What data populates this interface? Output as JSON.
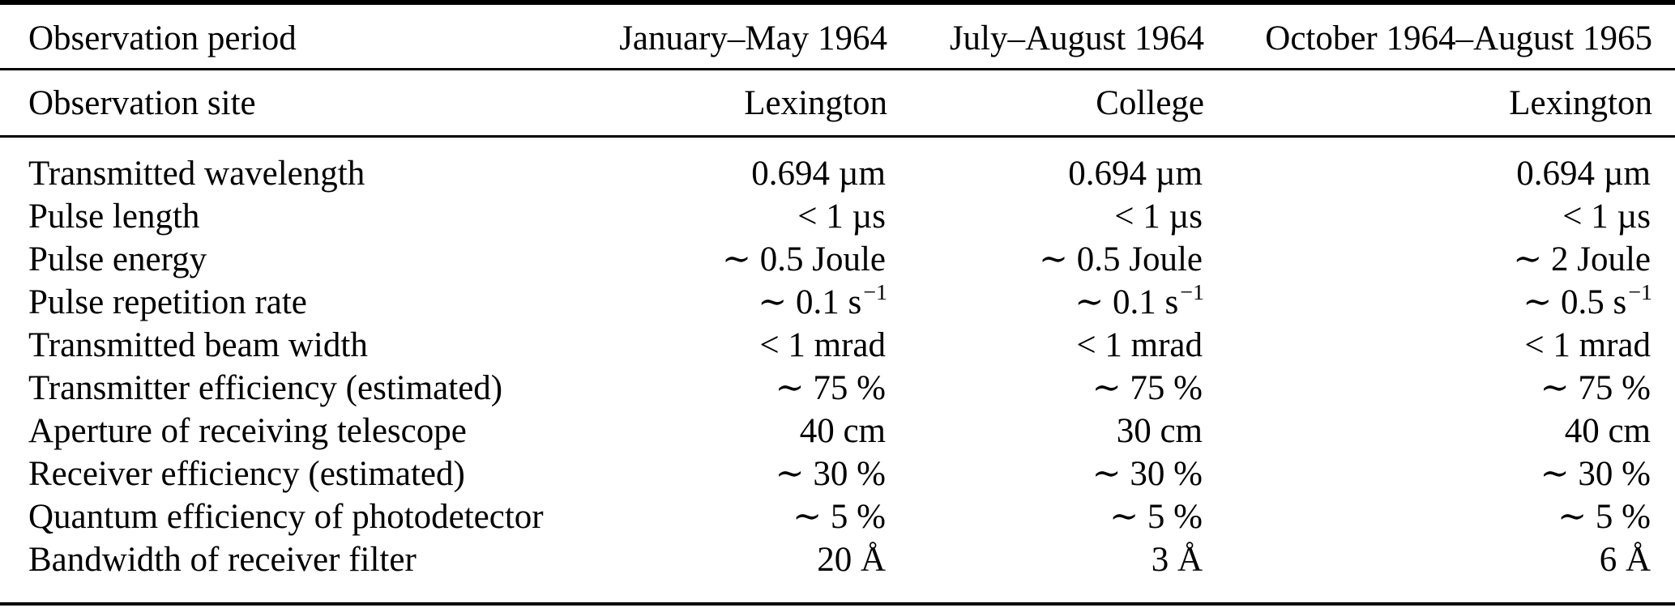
{
  "table": {
    "header_row": {
      "label": "Observation period",
      "values": [
        {
          "text": "January–May 1964"
        },
        {
          "text": "July–August 1964"
        },
        {
          "text": "October 1964–August 1965"
        }
      ]
    },
    "site_row": {
      "label": "Observation site",
      "values": [
        {
          "text": "Lexington"
        },
        {
          "text": "College"
        },
        {
          "text": "Lexington"
        }
      ]
    },
    "rows": [
      {
        "label": "Transmitted wavelength",
        "values": [
          {
            "text": "0.694 µm"
          },
          {
            "text": "0.694 µm"
          },
          {
            "text": "0.694 µm"
          }
        ]
      },
      {
        "label": "Pulse length",
        "values": [
          {
            "text": "< 1 µs"
          },
          {
            "text": "< 1 µs"
          },
          {
            "text": "< 1 µs"
          }
        ]
      },
      {
        "label": "Pulse energy",
        "values": [
          {
            "text": "∼ 0.5 Joule"
          },
          {
            "text": "∼ 0.5 Joule"
          },
          {
            "text": "∼ 2 Joule"
          }
        ]
      },
      {
        "label": "Pulse repetition rate",
        "values": [
          {
            "text": "∼ 0.1 s",
            "sup": "−1"
          },
          {
            "text": "∼ 0.1 s",
            "sup": "−1"
          },
          {
            "text": "∼ 0.5 s",
            "sup": "−1"
          }
        ]
      },
      {
        "label": "Transmitted beam width",
        "values": [
          {
            "text": "< 1 mrad"
          },
          {
            "text": "< 1 mrad"
          },
          {
            "text": "< 1 mrad"
          }
        ]
      },
      {
        "label": "Transmitter efficiency (estimated)",
        "values": [
          {
            "text": "∼ 75 %"
          },
          {
            "text": "∼ 75 %"
          },
          {
            "text": "∼ 75 %"
          }
        ]
      },
      {
        "label": "Aperture of receiving telescope",
        "values": [
          {
            "text": "40 cm"
          },
          {
            "text": "30 cm"
          },
          {
            "text": "40 cm"
          }
        ]
      },
      {
        "label": "Receiver efficiency (estimated)",
        "values": [
          {
            "text": "∼ 30 %"
          },
          {
            "text": "∼ 30 %"
          },
          {
            "text": "∼ 30 %"
          }
        ]
      },
      {
        "label": "Quantum efficiency of photodetector",
        "values": [
          {
            "text": "∼ 5 %"
          },
          {
            "text": "∼ 5 %"
          },
          {
            "text": "∼ 5 %"
          }
        ]
      },
      {
        "label": "Bandwidth of receiver filter",
        "values": [
          {
            "text": "20 Å"
          },
          {
            "text": "3 Å"
          },
          {
            "text": "6 Å"
          }
        ]
      }
    ]
  }
}
